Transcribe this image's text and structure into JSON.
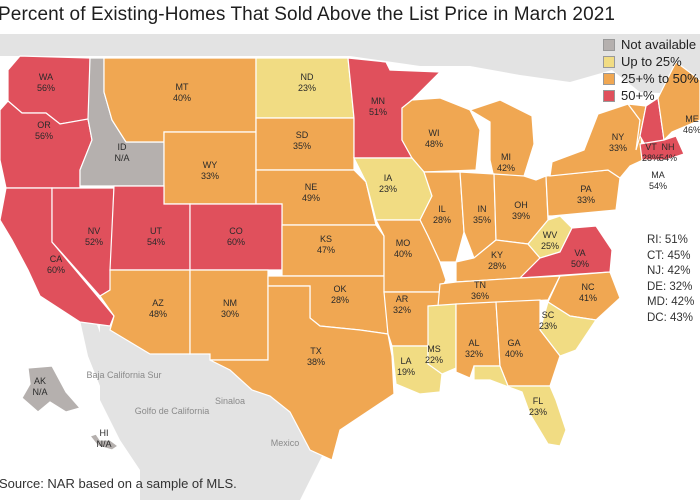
{
  "title": "Percent of Existing-Homes That Sold Above the List Price in March 2021",
  "colors": {
    "not_available": "#b5b0ae",
    "up_to_25": "#f1dc83",
    "p25_to_50": "#f0a752",
    "over_50": "#e0505c",
    "background_land": "#e3e3e3",
    "water": "#ffffff"
  },
  "legend": [
    {
      "label": "Not available",
      "category": "not_available"
    },
    {
      "label": "Up to 25%",
      "category": "up_to_25"
    },
    {
      "label": "25+% to 50%",
      "category": "p25_to_50"
    },
    {
      "label": "50+%",
      "category": "over_50"
    }
  ],
  "states": {
    "WA": {
      "abbr": "WA",
      "value": "56%",
      "category": "over_50"
    },
    "OR": {
      "abbr": "OR",
      "value": "56%",
      "category": "over_50"
    },
    "ID": {
      "abbr": "ID",
      "value": "N/A",
      "category": "not_available"
    },
    "MT": {
      "abbr": "MT",
      "value": "40%",
      "category": "p25_to_50"
    },
    "ND": {
      "abbr": "ND",
      "value": "23%",
      "category": "up_to_25"
    },
    "MN": {
      "abbr": "MN",
      "value": "51%",
      "category": "over_50"
    },
    "WI": {
      "abbr": "WI",
      "value": "48%",
      "category": "p25_to_50"
    },
    "MI": {
      "abbr": "MI",
      "value": "42%",
      "category": "p25_to_50"
    },
    "NY": {
      "abbr": "NY",
      "value": "33%",
      "category": "p25_to_50"
    },
    "VT": {
      "abbr": "VT",
      "value": "28%",
      "category": "p25_to_50"
    },
    "NH": {
      "abbr": "NH",
      "value": "54%",
      "category": "over_50"
    },
    "ME": {
      "abbr": "ME",
      "value": "46%",
      "category": "p25_to_50"
    },
    "MA": {
      "abbr": "MA",
      "value": "54%",
      "category": "over_50"
    },
    "CA": {
      "abbr": "CA",
      "value": "60%",
      "category": "over_50"
    },
    "NV": {
      "abbr": "NV",
      "value": "52%",
      "category": "over_50"
    },
    "UT": {
      "abbr": "UT",
      "value": "54%",
      "category": "over_50"
    },
    "CO": {
      "abbr": "CO",
      "value": "60%",
      "category": "over_50"
    },
    "WY": {
      "abbr": "WY",
      "value": "33%",
      "category": "p25_to_50"
    },
    "SD": {
      "abbr": "SD",
      "value": "35%",
      "category": "p25_to_50"
    },
    "NE": {
      "abbr": "NE",
      "value": "49%",
      "category": "p25_to_50"
    },
    "IA": {
      "abbr": "IA",
      "value": "23%",
      "category": "up_to_25"
    },
    "IL": {
      "abbr": "IL",
      "value": "28%",
      "category": "p25_to_50"
    },
    "IN": {
      "abbr": "IN",
      "value": "35%",
      "category": "p25_to_50"
    },
    "OH": {
      "abbr": "OH",
      "value": "39%",
      "category": "p25_to_50"
    },
    "PA": {
      "abbr": "PA",
      "value": "33%",
      "category": "p25_to_50"
    },
    "WV": {
      "abbr": "WV",
      "value": "25%",
      "category": "up_to_25"
    },
    "VA": {
      "abbr": "VA",
      "value": "50%",
      "category": "over_50"
    },
    "KY": {
      "abbr": "KY",
      "value": "28%",
      "category": "p25_to_50"
    },
    "KS": {
      "abbr": "KS",
      "value": "47%",
      "category": "p25_to_50"
    },
    "MO": {
      "abbr": "MO",
      "value": "40%",
      "category": "p25_to_50"
    },
    "TN": {
      "abbr": "TN",
      "value": "36%",
      "category": "p25_to_50"
    },
    "NC": {
      "abbr": "NC",
      "value": "41%",
      "category": "p25_to_50"
    },
    "SC": {
      "abbr": "SC",
      "value": "23%",
      "category": "up_to_25"
    },
    "AZ": {
      "abbr": "AZ",
      "value": "48%",
      "category": "p25_to_50"
    },
    "NM": {
      "abbr": "NM",
      "value": "30%",
      "category": "p25_to_50"
    },
    "OK": {
      "abbr": "OK",
      "value": "28%",
      "category": "p25_to_50"
    },
    "AR": {
      "abbr": "AR",
      "value": "32%",
      "category": "p25_to_50"
    },
    "TX": {
      "abbr": "TX",
      "value": "38%",
      "category": "p25_to_50"
    },
    "MS": {
      "abbr": "MS",
      "value": "22%",
      "category": "up_to_25"
    },
    "AL": {
      "abbr": "AL",
      "value": "32%",
      "category": "p25_to_50"
    },
    "GA": {
      "abbr": "GA",
      "value": "40%",
      "category": "p25_to_50"
    },
    "LA": {
      "abbr": "LA",
      "value": "19%",
      "category": "up_to_25"
    },
    "FL": {
      "abbr": "FL",
      "value": "23%",
      "category": "up_to_25"
    },
    "AK": {
      "abbr": "AK",
      "value": "N/A",
      "category": "not_available"
    },
    "HI": {
      "abbr": "HI",
      "value": "N/A",
      "category": "not_available"
    }
  },
  "small_states": [
    {
      "label": "RI: 51%"
    },
    {
      "label": "CT: 45%"
    },
    {
      "label": "NJ: 42%"
    },
    {
      "label": "DE: 32%"
    },
    {
      "label": "MD: 42%"
    },
    {
      "label": "DC: 43%"
    }
  ],
  "background_labels": {
    "mexico": "Mexico",
    "gulf_of_california": "Golfo de California",
    "baja_california_sur": "Baja California Sur",
    "sinaloa": "Sinaloa"
  },
  "source": "Source: NAR based on a sample of MLS."
}
